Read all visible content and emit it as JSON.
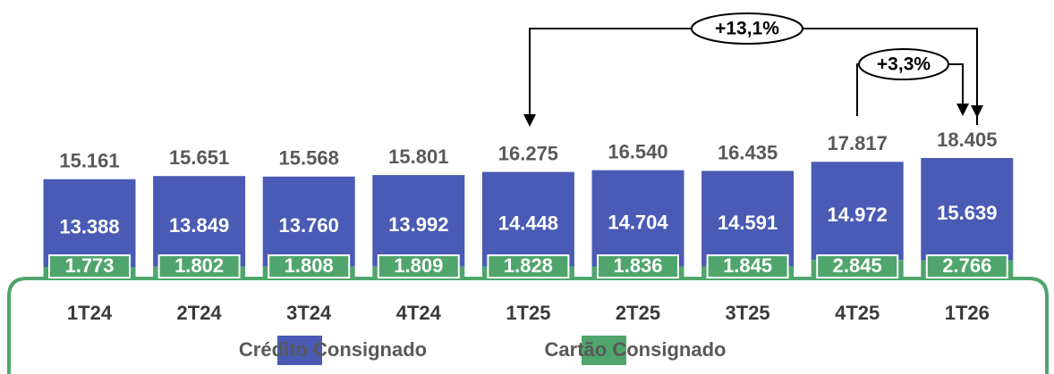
{
  "chart_data": {
    "type": "stacked_bar",
    "categories": [
      "1T24",
      "2T24",
      "3T24",
      "4T24",
      "1T25",
      "2T25",
      "3T25",
      "4T25",
      "1T26"
    ],
    "series": [
      {
        "name": "Crédito Consignado",
        "color": "#4a5bb5",
        "values": [
          13388,
          13849,
          13760,
          13992,
          14448,
          14704,
          14591,
          14972,
          15639
        ],
        "value_labels": [
          "13.388",
          "13.849",
          "13.760",
          "13.992",
          "14.448",
          "14.704",
          "14.591",
          "14.972",
          "15.639"
        ]
      },
      {
        "name": "Cartão Consignado",
        "color": "#4fa56c",
        "values": [
          1773,
          1802,
          1808,
          1809,
          1828,
          1836,
          1845,
          2845,
          2766
        ],
        "value_labels": [
          "1.773",
          "1.802",
          "1.808",
          "1.809",
          "1.828",
          "1.836",
          "1.845",
          "2.845",
          "2.766"
        ]
      }
    ],
    "totals": {
      "values": [
        15161,
        15651,
        15568,
        15801,
        16275,
        16540,
        16435,
        17817,
        18405
      ],
      "value_labels": [
        "15.161",
        "15.651",
        "15.568",
        "15.801",
        "16.275",
        "16.540",
        "16.435",
        "17.817",
        "18.405"
      ]
    },
    "annotations": [
      "+13,1%",
      "+3,3%"
    ]
  }
}
